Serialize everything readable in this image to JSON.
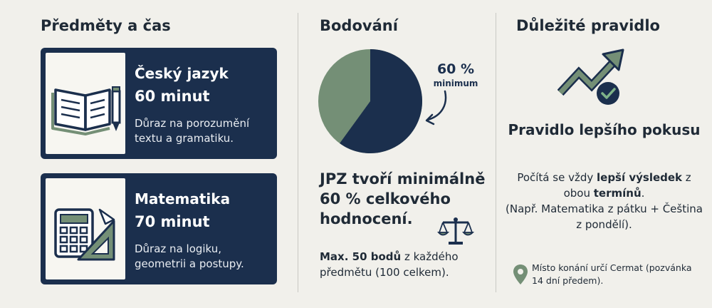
{
  "left": {
    "title": "Předměty a čas",
    "cards": [
      {
        "title": "Český jazyk",
        "time": "60 minut",
        "desc": "Důraz na porozumění textu a gramatiku.",
        "icon": "book-pencil-icon"
      },
      {
        "title": "Matematika",
        "time": "70 minut",
        "desc": "Důraz na logiku, geometrii a postupy.",
        "icon": "calculator-ruler-icon"
      }
    ]
  },
  "middle": {
    "title": "Bodování",
    "pie": {
      "value_pct": 60,
      "colors": {
        "main": "#1b2f4d",
        "rest": "#748f76"
      }
    },
    "pct_label": "60 %",
    "pct_sub": "minimum",
    "statement": "JPZ tvoří minimálně 60 % celkového hodnocení.",
    "points_bold": "Max. 50 bodů",
    "points_rest": " z každého předmětu (100 celkem).",
    "icon": "scales-icon"
  },
  "right": {
    "title": "Důležité pravidlo",
    "rule_title": "Pravidlo lepšího pokusu",
    "desc": {
      "p1": "Počítá se vždy ",
      "b1": "lepší výsledek",
      "p2": " z obou ",
      "b2": "termínů",
      "p3": ".",
      "example": "(Např. Matematika z pátku + Čeština z pondělí)."
    },
    "note": "Místo konání určí Cermat (pozvánka 14 dní předem).",
    "icons": {
      "main": "trend-up-check-icon",
      "note": "location-pin-icon"
    }
  },
  "colors": {
    "navy": "#1b2f4d",
    "green": "#748f76",
    "background": "#f1f0eb"
  }
}
